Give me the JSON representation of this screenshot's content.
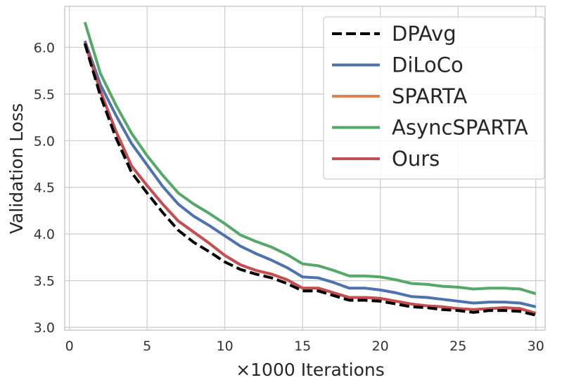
{
  "chart_data": {
    "type": "line",
    "title": "",
    "xlabel": "×1000 Iterations",
    "ylabel": "Validation Loss",
    "xlim": [
      -0.3,
      30.6
    ],
    "ylim": [
      2.97,
      6.44
    ],
    "xticks": [
      0,
      5,
      10,
      15,
      20,
      25,
      30
    ],
    "yticks": [
      3.0,
      3.5,
      4.0,
      4.5,
      5.0,
      5.5,
      6.0
    ],
    "ytick_labels": [
      "3.0",
      "3.5",
      "4.0",
      "4.5",
      "5.0",
      "5.5",
      "6.0"
    ],
    "grid": true,
    "legend_position": "top-right",
    "x": [
      1,
      2,
      3,
      4,
      5,
      6,
      7,
      8,
      9,
      10,
      11,
      12,
      13,
      14,
      15,
      16,
      17,
      18,
      19,
      20,
      21,
      22,
      23,
      24,
      25,
      26,
      27,
      28,
      29,
      30
    ],
    "series": [
      {
        "name": "DPAvg",
        "color": "#000000",
        "dashed": true,
        "values": [
          6.04,
          5.48,
          5.03,
          4.66,
          4.44,
          4.23,
          4.04,
          3.91,
          3.81,
          3.7,
          3.62,
          3.57,
          3.53,
          3.47,
          3.39,
          3.39,
          3.34,
          3.29,
          3.29,
          3.28,
          3.25,
          3.22,
          3.21,
          3.19,
          3.18,
          3.16,
          3.18,
          3.18,
          3.17,
          3.13
        ]
      },
      {
        "name": "DiLoCo",
        "color": "#4c72b0",
        "dashed": false,
        "values": [
          6.07,
          5.6,
          5.27,
          4.97,
          4.74,
          4.51,
          4.32,
          4.19,
          4.09,
          3.98,
          3.87,
          3.79,
          3.72,
          3.64,
          3.54,
          3.53,
          3.48,
          3.42,
          3.42,
          3.4,
          3.37,
          3.33,
          3.32,
          3.3,
          3.28,
          3.26,
          3.27,
          3.27,
          3.26,
          3.22
        ]
      },
      {
        "name": "SPARTA",
        "color": "#dd8452",
        "dashed": false,
        "values": [
          6.05,
          5.53,
          5.1,
          4.73,
          4.52,
          4.32,
          4.14,
          4.02,
          3.9,
          3.77,
          3.67,
          3.61,
          3.57,
          3.51,
          3.42,
          3.42,
          3.37,
          3.32,
          3.32,
          3.31,
          3.28,
          3.25,
          3.23,
          3.22,
          3.2,
          3.19,
          3.2,
          3.21,
          3.2,
          3.15
        ]
      },
      {
        "name": "AsyncSPARTA",
        "color": "#55a868",
        "dashed": false,
        "values": [
          6.27,
          5.72,
          5.38,
          5.08,
          4.84,
          4.63,
          4.44,
          4.32,
          4.22,
          4.11,
          3.99,
          3.92,
          3.86,
          3.78,
          3.68,
          3.66,
          3.61,
          3.55,
          3.55,
          3.54,
          3.51,
          3.47,
          3.46,
          3.44,
          3.43,
          3.41,
          3.42,
          3.42,
          3.41,
          3.36
        ]
      },
      {
        "name": "Ours",
        "color": "#c44e52",
        "dashed": false,
        "values": [
          6.05,
          5.53,
          5.1,
          4.73,
          4.52,
          4.32,
          4.14,
          4.02,
          3.9,
          3.77,
          3.67,
          3.61,
          3.57,
          3.51,
          3.42,
          3.42,
          3.37,
          3.32,
          3.32,
          3.31,
          3.28,
          3.25,
          3.23,
          3.22,
          3.2,
          3.19,
          3.2,
          3.21,
          3.2,
          3.15
        ]
      }
    ]
  }
}
